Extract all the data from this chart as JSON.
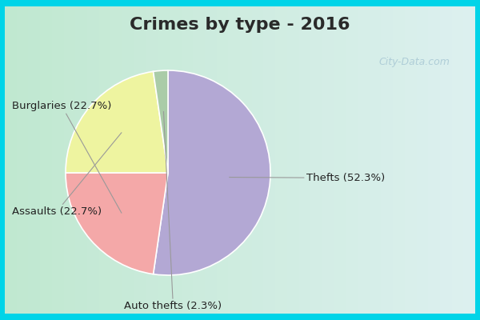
{
  "title": "Crimes by type - 2016",
  "slices": [
    {
      "label": "Thefts (52.3%)",
      "value": 52.3,
      "color": "#b3a8d4"
    },
    {
      "label": "Burglaries (22.7%)",
      "value": 22.7,
      "color": "#f4a8a8"
    },
    {
      "label": "Assaults (22.7%)",
      "value": 22.7,
      "color": "#eef4a0"
    },
    {
      "label": "Auto thefts (2.3%)",
      "value": 2.3,
      "color": "#aacca8"
    }
  ],
  "bg_outer": "#00d4e8",
  "bg_inner_left": "#c8e8d8",
  "bg_inner_right": "#ddeef0",
  "title_fontsize": 16,
  "title_color": "#2a2a2a",
  "label_fontsize": 9.5,
  "watermark": "City-Data.com"
}
